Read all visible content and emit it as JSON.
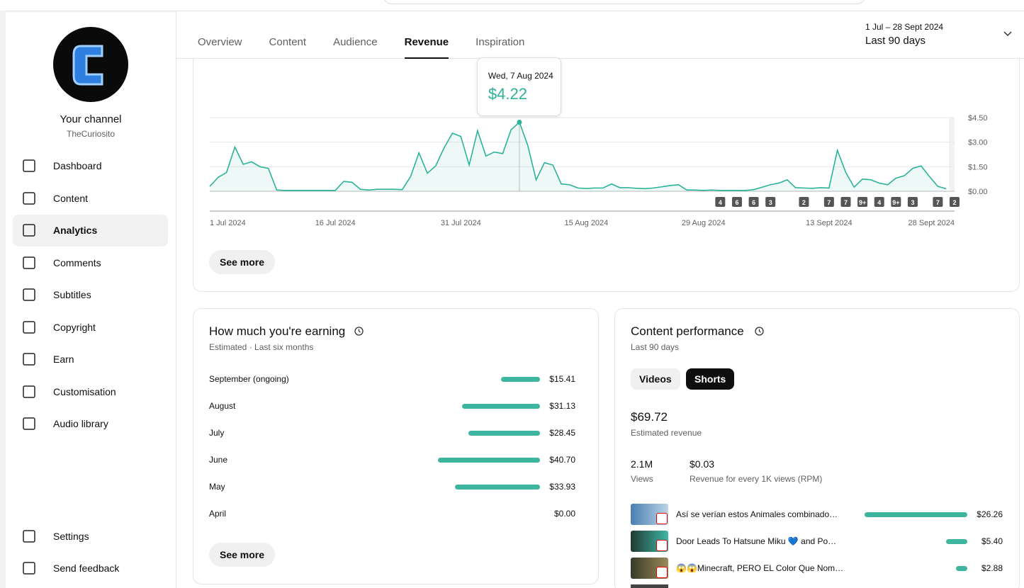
{
  "sidebar": {
    "channel_title": "Your channel",
    "handle": "TheCuriosito",
    "nav": [
      "Dashboard",
      "Content",
      "Analytics",
      "Comments",
      "Subtitles",
      "Copyright",
      "Earn",
      "Customisation",
      "Audio library"
    ],
    "active": "Analytics",
    "bottom": [
      "Settings",
      "Send feedback"
    ]
  },
  "tabs": {
    "items": [
      "Overview",
      "Content",
      "Audience",
      "Revenue",
      "Inspiration"
    ],
    "active": "Revenue"
  },
  "date_range": {
    "range": "1 Jul – 28 Sept 2024",
    "label": "Last 90 days"
  },
  "chart_data": {
    "type": "line",
    "color": "#2bb39a",
    "categories": [
      "1 Jul 2024",
      null,
      null,
      null,
      null,
      null,
      null,
      null,
      null,
      null,
      null,
      null,
      null,
      null,
      null,
      "16 Jul 2024",
      null,
      null,
      null,
      null,
      null,
      null,
      null,
      null,
      null,
      null,
      null,
      null,
      null,
      null,
      "31 Jul 2024",
      null,
      null,
      null,
      null,
      null,
      null,
      null,
      null,
      null,
      null,
      null,
      null,
      null,
      null,
      "15 Aug 2024",
      null,
      null,
      null,
      null,
      null,
      null,
      null,
      null,
      null,
      null,
      null,
      null,
      null,
      "29 Aug 2024",
      null,
      null,
      null,
      null,
      null,
      null,
      null,
      null,
      null,
      null,
      null,
      null,
      null,
      null,
      "13 Sept 2024",
      null,
      null,
      null,
      null,
      null,
      null,
      null,
      null,
      null,
      null,
      null,
      null,
      null,
      null,
      "28 Sept 2024"
    ],
    "values": [
      0.3,
      0.85,
      1.15,
      2.7,
      1.65,
      1.8,
      1.5,
      1.4,
      0.08,
      0.05,
      0.05,
      0.05,
      0.05,
      0.05,
      0.05,
      0.05,
      0.6,
      0.55,
      0.12,
      0.08,
      0.12,
      0.12,
      0.12,
      0.1,
      0.9,
      2.35,
      1.1,
      1.55,
      2.65,
      3.55,
      3.35,
      1.6,
      3.7,
      2.15,
      2.4,
      2.3,
      3.75,
      4.22,
      2.8,
      0.7,
      1.75,
      1.6,
      0.45,
      0.4,
      0.2,
      0.17,
      0.2,
      0.2,
      0.45,
      0.22,
      0.22,
      0.18,
      0.16,
      0.2,
      0.27,
      0.35,
      0.4,
      0.08,
      0.08,
      0.05,
      0.08,
      0.05,
      0.05,
      0.05,
      0.05,
      0.1,
      0.25,
      0.4,
      0.5,
      0.7,
      0.22,
      0.2,
      0.18,
      0.22,
      0.2,
      2.5,
      1.15,
      0.25,
      0.75,
      0.7,
      0.5,
      0.4,
      0.8,
      0.95,
      1.4,
      1.55,
      0.9,
      0.3,
      0.15,
      null
    ],
    "ylim": [
      0,
      4.5
    ],
    "yticks": [
      {
        "value": 0,
        "label": "$0.00"
      },
      {
        "value": 1.5,
        "label": "$1.50"
      },
      {
        "value": 3,
        "label": "$3.00"
      },
      {
        "value": 4.5,
        "label": "$4.50"
      }
    ],
    "grid": true,
    "tooltip": {
      "index": 37,
      "date": "Wed, 7 Aug 2024",
      "label": "$4.22"
    },
    "markers": [
      {
        "index": 61,
        "label": 4
      },
      {
        "index": 63,
        "label": 6
      },
      {
        "index": 65,
        "label": 6
      },
      {
        "index": 67,
        "label": 3
      },
      {
        "index": 71,
        "label": 2
      },
      {
        "index": 74,
        "label": 7
      },
      {
        "index": 76,
        "label": 7
      },
      {
        "index": 78,
        "label": "9+"
      },
      {
        "index": 80,
        "label": 4
      },
      {
        "index": 82,
        "label": "9+"
      },
      {
        "index": 84,
        "label": 3
      },
      {
        "index": 87,
        "label": 7
      },
      {
        "index": 89,
        "label": 2
      }
    ],
    "button": "See more"
  },
  "earnings": {
    "title": "How much you're earning",
    "subtitle": "Estimated · Last six months",
    "categories": [
      "September (ongoing)",
      "August",
      "July",
      "June",
      "May",
      "April"
    ],
    "values": [
      15.41,
      31.13,
      28.45,
      40.7,
      33.93,
      0
    ],
    "value_labels": [
      "$15.41",
      "$31.13",
      "$28.45",
      "$40.70",
      "$33.93",
      "$0.00"
    ],
    "color": "#3eb59f",
    "button": "See more"
  },
  "content_performance": {
    "title": "Content performance",
    "subtitle": "Last 90 days",
    "toggle": [
      "Videos",
      "Shorts"
    ],
    "active": "Shorts",
    "revenue": "$69.72",
    "revenue_label": "Estimated revenue",
    "views": "2.1M",
    "views_label": "Views",
    "rpm": "$0.03",
    "rpm_label": "Revenue for every 1K views (RPM)",
    "items": [
      "Así se verían estos Animales combinado…",
      "Door Leads To Hatsune Miku 💙 and Po…",
      "😱😱Minecraft, PERO EL Color Que Nom…"
    ],
    "values": [
      26.26,
      5.4,
      2.88
    ],
    "value_labels": [
      "$26.26",
      "$5.40",
      "$2.88"
    ],
    "color": "#3eb59f"
  }
}
